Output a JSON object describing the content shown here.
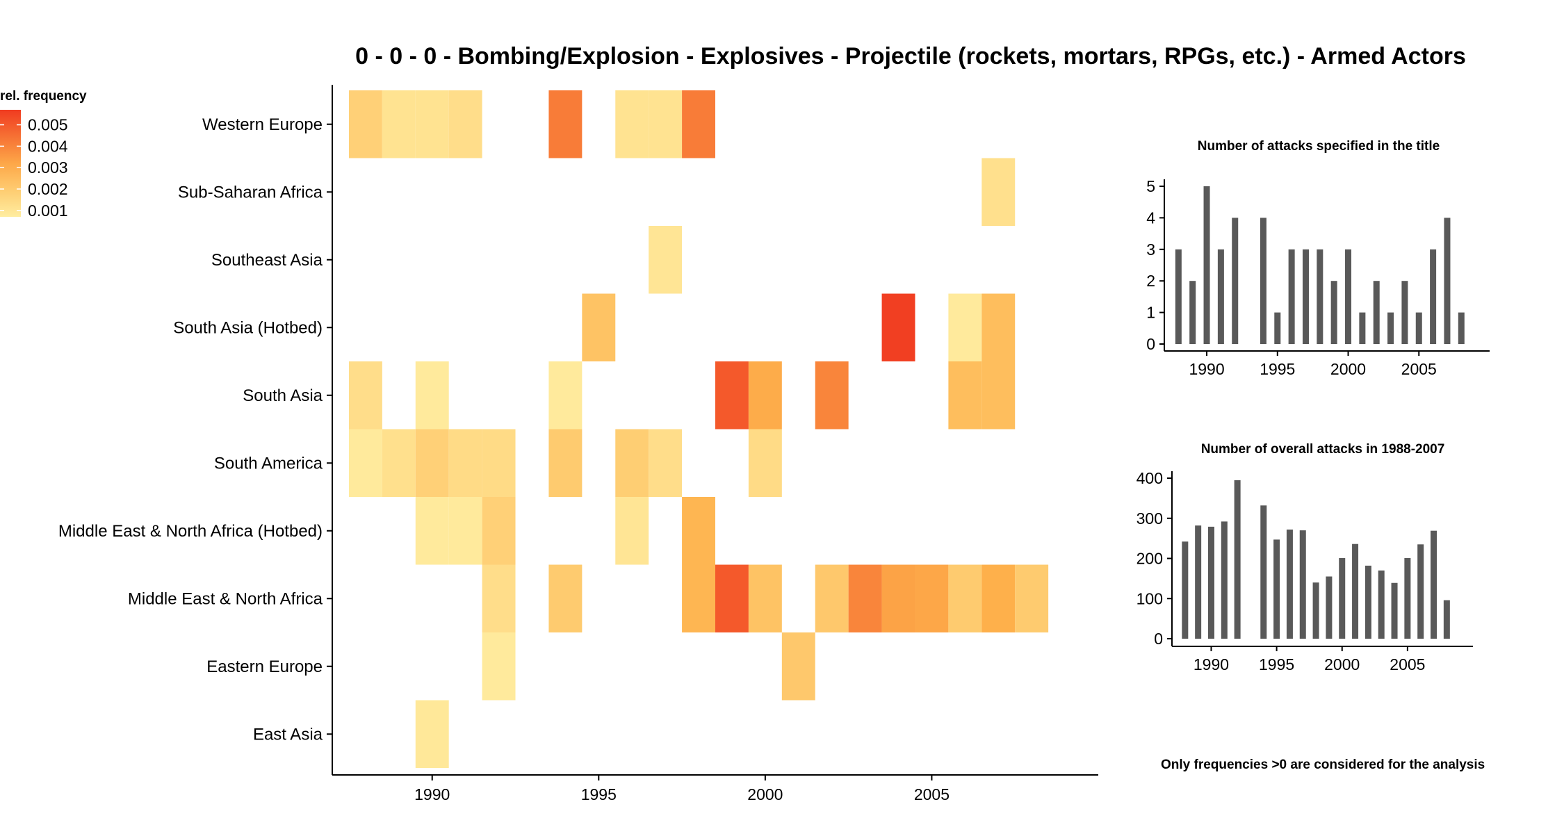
{
  "title": "0 - 0 - 0 - Bombing/Explosion - Explosives - Projectile (rockets, mortars, RPGs, etc.) - Armed Actors",
  "footnote": "Only frequencies >0 are considered for the analysis",
  "colors": {
    "low": "#FFEDA0",
    "mid": "#FEB24C",
    "high": "#F03B20",
    "bar": "#595959",
    "axis": "#000000"
  },
  "chart_data": [
    {
      "type": "heatmap",
      "title": "0 - 0 - 0 - Bombing/Explosion - Explosives - Projectile (rockets, mortars, RPGs, etc.) - Armed Actors",
      "legend": {
        "title": "rel. frequency",
        "ticks": [
          0.005,
          0.004,
          0.003,
          0.002,
          0.001
        ],
        "tick_labels": [
          "0.005",
          "0.004",
          "0.003",
          "0.002",
          "0.001"
        ],
        "position": "top-left"
      },
      "xlim": [
        1987,
        2010
      ],
      "x_ticks": [
        1990,
        1995,
        2000,
        2005
      ],
      "x_tick_labels": [
        "1990",
        "1995",
        "2000",
        "2005"
      ],
      "rows": [
        "Western Europe",
        "Sub-Saharan Africa",
        "Southeast Asia",
        "South Asia (Hotbed)",
        "South Asia",
        "South America",
        "Middle East & North Africa (Hotbed)",
        "Middle East & North Africa",
        "Eastern Europe",
        "East Asia"
      ],
      "cells": [
        {
          "row": "Western Europe",
          "year": 1988,
          "value": 0.0018
        },
        {
          "row": "Western Europe",
          "year": 1989,
          "value": 0.0011
        },
        {
          "row": "Western Europe",
          "year": 1990,
          "value": 0.0011
        },
        {
          "row": "Western Europe",
          "year": 1991,
          "value": 0.0013
        },
        {
          "row": "Western Europe",
          "year": 1994,
          "value": 0.0042
        },
        {
          "row": "Western Europe",
          "year": 1996,
          "value": 0.0011
        },
        {
          "row": "Western Europe",
          "year": 1997,
          "value": 0.0011
        },
        {
          "row": "Western Europe",
          "year": 1998,
          "value": 0.0042
        },
        {
          "row": "Sub-Saharan Africa",
          "year": 2007,
          "value": 0.0012
        },
        {
          "row": "Southeast Asia",
          "year": 1997,
          "value": 0.001
        },
        {
          "row": "South Asia (Hotbed)",
          "year": 1995,
          "value": 0.0023
        },
        {
          "row": "South Asia (Hotbed)",
          "year": 2004,
          "value": 0.0056
        },
        {
          "row": "South Asia (Hotbed)",
          "year": 2006,
          "value": 0.0008
        },
        {
          "row": "South Asia (Hotbed)",
          "year": 2007,
          "value": 0.0025
        },
        {
          "row": "South Asia",
          "year": 1988,
          "value": 0.0013
        },
        {
          "row": "South Asia",
          "year": 1990,
          "value": 0.0008
        },
        {
          "row": "South Asia",
          "year": 1994,
          "value": 0.0008
        },
        {
          "row": "South Asia",
          "year": 1999,
          "value": 0.005
        },
        {
          "row": "South Asia",
          "year": 2000,
          "value": 0.0031
        },
        {
          "row": "South Asia",
          "year": 2002,
          "value": 0.004
        },
        {
          "row": "South Asia",
          "year": 2006,
          "value": 0.0025
        },
        {
          "row": "South Asia",
          "year": 2007,
          "value": 0.0025
        },
        {
          "row": "South America",
          "year": 1988,
          "value": 0.0008
        },
        {
          "row": "South America",
          "year": 1989,
          "value": 0.0012
        },
        {
          "row": "South America",
          "year": 1990,
          "value": 0.0018
        },
        {
          "row": "South America",
          "year": 1991,
          "value": 0.0014
        },
        {
          "row": "South America",
          "year": 1992,
          "value": 0.0014
        },
        {
          "row": "South America",
          "year": 1994,
          "value": 0.002
        },
        {
          "row": "South America",
          "year": 1996,
          "value": 0.0019
        },
        {
          "row": "South America",
          "year": 1997,
          "value": 0.0013
        },
        {
          "row": "South America",
          "year": 2000,
          "value": 0.0014
        },
        {
          "row": "Middle East & North Africa (Hotbed)",
          "year": 1990,
          "value": 0.0008
        },
        {
          "row": "Middle East & North Africa (Hotbed)",
          "year": 1991,
          "value": 0.0008
        },
        {
          "row": "Middle East & North Africa (Hotbed)",
          "year": 1992,
          "value": 0.0018
        },
        {
          "row": "Middle East & North Africa (Hotbed)",
          "year": 1996,
          "value": 0.001
        },
        {
          "row": "Middle East & North Africa (Hotbed)",
          "year": 1998,
          "value": 0.0028
        },
        {
          "row": "Middle East & North Africa",
          "year": 1992,
          "value": 0.0013
        },
        {
          "row": "Middle East & North Africa",
          "year": 1994,
          "value": 0.002
        },
        {
          "row": "Middle East & North Africa",
          "year": 1998,
          "value": 0.0028
        },
        {
          "row": "Middle East & North Africa",
          "year": 1999,
          "value": 0.005
        },
        {
          "row": "Middle East & North Africa",
          "year": 2000,
          "value": 0.0023
        },
        {
          "row": "Middle East & North Africa",
          "year": 2002,
          "value": 0.0021
        },
        {
          "row": "Middle East & North Africa",
          "year": 2003,
          "value": 0.004
        },
        {
          "row": "Middle East & North Africa",
          "year": 2004,
          "value": 0.0033
        },
        {
          "row": "Middle East & North Africa",
          "year": 2005,
          "value": 0.0032
        },
        {
          "row": "Middle East & North Africa",
          "year": 2006,
          "value": 0.002
        },
        {
          "row": "Middle East & North Africa",
          "year": 2007,
          "value": 0.003
        },
        {
          "row": "Middle East & North Africa",
          "year": 2008,
          "value": 0.002
        },
        {
          "row": "Eastern Europe",
          "year": 1992,
          "value": 0.0008
        },
        {
          "row": "Eastern Europe",
          "year": 2001,
          "value": 0.0021
        },
        {
          "row": "East Asia",
          "year": 1990,
          "value": 0.0009
        }
      ]
    },
    {
      "type": "bar",
      "title": "Number of attacks specified in the title",
      "x": [
        1988,
        1989,
        1990,
        1991,
        1992,
        1994,
        1995,
        1996,
        1997,
        1998,
        1999,
        2000,
        2001,
        2002,
        2003,
        2004,
        2005,
        2006,
        2007,
        2008
      ],
      "values": [
        3,
        2,
        5,
        3,
        4,
        4,
        1,
        3,
        3,
        3,
        2,
        3,
        1,
        2,
        1,
        2,
        1,
        3,
        4,
        1
      ],
      "ylim": [
        0,
        5
      ],
      "y_ticks": [
        0,
        1,
        2,
        3,
        4,
        5
      ],
      "y_tick_labels": [
        "0",
        "1",
        "2",
        "3",
        "4",
        "5"
      ],
      "xlim": [
        1987,
        2010
      ],
      "x_ticks": [
        1990,
        1995,
        2000,
        2005
      ],
      "x_tick_labels": [
        "1990",
        "1995",
        "2000",
        "2005"
      ]
    },
    {
      "type": "bar",
      "title": "Number of overall attacks in 1988-2007",
      "x": [
        1988,
        1989,
        1990,
        1991,
        1992,
        1994,
        1995,
        1996,
        1997,
        1998,
        1999,
        2000,
        2001,
        2002,
        2003,
        2004,
        2005,
        2006,
        2007,
        2008
      ],
      "values": [
        242,
        282,
        279,
        292,
        395,
        332,
        247,
        272,
        270,
        140,
        155,
        201,
        236,
        182,
        170,
        139,
        201,
        235,
        269,
        96
      ],
      "ylim": [
        0,
        400
      ],
      "y_ticks": [
        0,
        100,
        200,
        300,
        400
      ],
      "y_tick_labels": [
        "0",
        "100",
        "200",
        "300",
        "400"
      ],
      "xlim": [
        1987,
        2010
      ],
      "x_ticks": [
        1990,
        1995,
        2000,
        2005
      ],
      "x_tick_labels": [
        "1990",
        "1995",
        "2000",
        "2005"
      ]
    }
  ]
}
